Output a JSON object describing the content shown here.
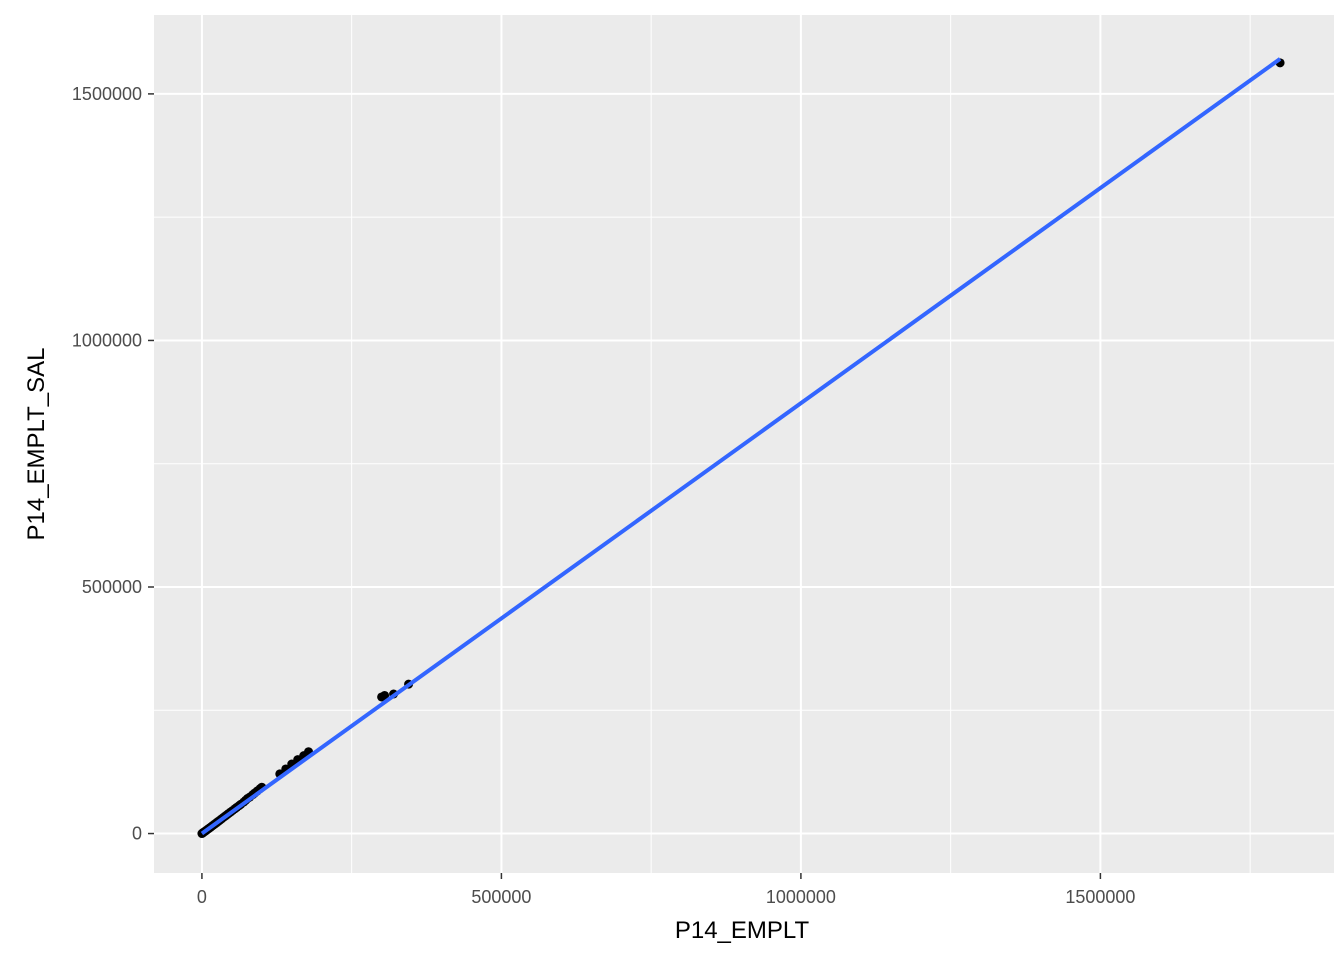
{
  "chart_data": {
    "type": "scatter",
    "title": "",
    "xlabel": "P14_EMPLT",
    "ylabel": "P14_EMPLT_SAL",
    "xlim": [
      -80000,
      1890000
    ],
    "ylim": [
      -80000,
      1660000
    ],
    "x_ticks": [
      0,
      500000,
      1000000,
      1500000
    ],
    "x_tick_labels": [
      "0",
      "500000",
      "1000000",
      "1500000"
    ],
    "y_ticks": [
      0,
      500000,
      1000000,
      1500000
    ],
    "y_tick_labels": [
      "0",
      "500000",
      "1000000",
      "1500000"
    ],
    "grid": true,
    "legend": "none",
    "colors": {
      "panel_background": "#ebebeb",
      "grid_major": "#ffffff",
      "points": "#000000",
      "fit_line": "#3366ff"
    },
    "points": [
      [
        0,
        0
      ],
      [
        1000,
        900
      ],
      [
        2000,
        1800
      ],
      [
        3000,
        2700
      ],
      [
        4500,
        4000
      ],
      [
        6000,
        5300
      ],
      [
        8000,
        7100
      ],
      [
        10000,
        8900
      ],
      [
        12000,
        10700
      ],
      [
        14000,
        12500
      ],
      [
        16000,
        14300
      ],
      [
        18000,
        16100
      ],
      [
        20000,
        17900
      ],
      [
        22000,
        19800
      ],
      [
        24000,
        21600
      ],
      [
        26000,
        23500
      ],
      [
        28000,
        25300
      ],
      [
        30000,
        27200
      ],
      [
        33000,
        30000
      ],
      [
        36000,
        32800
      ],
      [
        39000,
        35500
      ],
      [
        42000,
        38300
      ],
      [
        45000,
        41000
      ],
      [
        48000,
        43800
      ],
      [
        51000,
        46500
      ],
      [
        55000,
        50200
      ],
      [
        58000,
        53000
      ],
      [
        62000,
        56600
      ],
      [
        65000,
        59400
      ],
      [
        70000,
        64000
      ],
      [
        73000,
        67500
      ],
      [
        76000,
        71000
      ],
      [
        80000,
        74000
      ],
      [
        85000,
        79000
      ],
      [
        88000,
        82000
      ],
      [
        92000,
        86000
      ],
      [
        97000,
        91000
      ],
      [
        100000,
        94000
      ],
      [
        130000,
        121000
      ],
      [
        140000,
        131000
      ],
      [
        150000,
        141000
      ],
      [
        160000,
        150000
      ],
      [
        170000,
        158000
      ],
      [
        178000,
        166000
      ],
      [
        300000,
        277000
      ],
      [
        305000,
        280000
      ],
      [
        320000,
        283000
      ],
      [
        345000,
        303000
      ],
      [
        1800000,
        1563000
      ]
    ],
    "fit_line": {
      "x": [
        0,
        1800000
      ],
      "y": [
        0,
        1571000
      ]
    }
  }
}
